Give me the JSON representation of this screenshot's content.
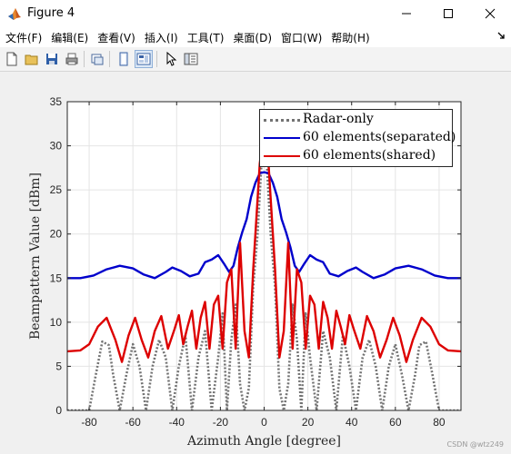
{
  "window": {
    "title": "Figure 4",
    "app_icon": "matlab-icon",
    "controls": [
      "minimize-icon",
      "maximize-icon",
      "close-icon"
    ]
  },
  "menubar": {
    "items": [
      "文件(F)",
      "编辑(E)",
      "查看(V)",
      "插入(I)",
      "工具(T)",
      "桌面(D)",
      "窗口(W)",
      "帮助(H)"
    ],
    "overflow_icon": "dock-arrow-icon"
  },
  "toolbar": {
    "buttons": [
      "new-figure-icon",
      "open-file-icon",
      "save-icon",
      "print-icon",
      "link-plot-icon",
      "hide-plot-tools-icon",
      "show-plot-tools-icon",
      "edit-plot-icon",
      "property-inspector-icon"
    ]
  },
  "watermark": "CSDN @wtz249",
  "chart_data": {
    "type": "line",
    "title": "",
    "xlabel": "Azimuth Angle [degree]",
    "ylabel": "Beampattern Value [dBm]",
    "xlim": [
      -90,
      90
    ],
    "ylim": [
      0,
      35
    ],
    "xticks": [
      -80,
      -60,
      -40,
      -20,
      0,
      20,
      40,
      60,
      80
    ],
    "yticks": [
      0,
      5,
      10,
      15,
      20,
      25,
      30,
      35
    ],
    "grid": true,
    "legend_position": "top-right",
    "series": [
      {
        "name": "Radar-only",
        "color": "#737373",
        "style": "dotted",
        "x": [
          -90,
          -85,
          -80,
          -77,
          -74,
          -71,
          -69,
          -66,
          -63,
          -60,
          -57,
          -54,
          -51,
          -48,
          -45,
          -42,
          -39,
          -36,
          -33,
          -30,
          -27,
          -24,
          -21,
          -19,
          -17,
          -15,
          -13,
          -11,
          -9,
          -7,
          -5,
          -3,
          -1,
          0,
          1,
          3,
          5,
          7,
          9,
          11,
          13,
          15,
          17,
          19,
          21,
          24,
          27,
          30,
          33,
          36,
          39,
          42,
          45,
          48,
          51,
          54,
          57,
          60,
          63,
          66,
          69,
          71,
          74,
          77,
          80,
          85,
          90
        ],
        "y": [
          0,
          0,
          0,
          4,
          7.8,
          7.4,
          4,
          0,
          4,
          7.5,
          5,
          0,
          5,
          8,
          6,
          0,
          5,
          8.5,
          0,
          6,
          9,
          0,
          6,
          11,
          0,
          8,
          12,
          3,
          0,
          2.5,
          14,
          20,
          29,
          30,
          29,
          20,
          14,
          2.5,
          0,
          3,
          12,
          8,
          0,
          11,
          6,
          0,
          9,
          6,
          0,
          8.5,
          5,
          0,
          6,
          8,
          5,
          0,
          5,
          7.5,
          4,
          0,
          4,
          7.4,
          7.8,
          4,
          0,
          0,
          0
        ]
      },
      {
        "name": "60 elements(separated)",
        "color": "#0000cc",
        "style": "solid",
        "x": [
          -90,
          -84,
          -78,
          -72,
          -66,
          -60,
          -55,
          -50,
          -45,
          -42,
          -38,
          -34,
          -30,
          -27,
          -24,
          -21,
          -18,
          -16,
          -14,
          -12,
          -10,
          -8,
          -6,
          -4,
          -2,
          0,
          2,
          4,
          6,
          8,
          10,
          12,
          14,
          16,
          18,
          21,
          24,
          27,
          30,
          34,
          38,
          42,
          45,
          50,
          55,
          60,
          66,
          72,
          78,
          84,
          90
        ],
        "y": [
          15,
          15,
          15.3,
          16,
          16.4,
          16.1,
          15.4,
          15,
          15.7,
          16.2,
          15.8,
          15.2,
          15.5,
          16.8,
          17.1,
          17.6,
          16.5,
          15.7,
          16.4,
          18.5,
          20.2,
          21.7,
          24.2,
          25.8,
          26.9,
          27,
          26.9,
          25.8,
          24.2,
          21.7,
          20.2,
          18.5,
          16.4,
          15.7,
          16.5,
          17.6,
          17.1,
          16.8,
          15.5,
          15.2,
          15.8,
          16.2,
          15.7,
          15,
          15.4,
          16.1,
          16.4,
          16,
          15.3,
          15,
          15
        ]
      },
      {
        "name": "60 elements(shared)",
        "color": "#dd0000",
        "style": "solid",
        "x": [
          -90,
          -84,
          -80,
          -76,
          -72,
          -68,
          -65,
          -62,
          -59,
          -56,
          -53,
          -50,
          -47,
          -44,
          -41,
          -39,
          -37,
          -35,
          -33,
          -31,
          -29,
          -27,
          -25,
          -23,
          -21,
          -19,
          -17,
          -15,
          -13,
          -11,
          -9,
          -7,
          -5,
          -3,
          -2,
          -1,
          0,
          1,
          2,
          3,
          5,
          7,
          9,
          11,
          13,
          15,
          17,
          19,
          21,
          23,
          25,
          27,
          29,
          31,
          33,
          35,
          37,
          39,
          41,
          44,
          47,
          50,
          53,
          56,
          59,
          62,
          65,
          68,
          72,
          76,
          80,
          84,
          90
        ],
        "y": [
          6.7,
          6.8,
          7.5,
          9.5,
          10.5,
          8,
          5.5,
          8.5,
          10.5,
          8,
          6,
          9,
          10.7,
          7,
          9.2,
          10.8,
          7.5,
          9.5,
          11.3,
          7,
          10.5,
          12.3,
          7,
          12,
          13,
          7,
          14.5,
          16,
          7,
          19,
          9,
          6,
          16,
          24,
          28,
          30,
          31.5,
          30,
          28,
          24,
          16,
          6,
          9,
          19,
          7,
          16,
          14.5,
          7,
          13,
          12,
          7,
          12.3,
          10.5,
          7,
          11.3,
          9.5,
          7.5,
          10.8,
          9.2,
          7,
          10.7,
          9,
          6,
          8,
          10.5,
          8.5,
          5.5,
          8,
          10.5,
          9.5,
          7.5,
          6.8,
          6.7
        ]
      }
    ]
  }
}
